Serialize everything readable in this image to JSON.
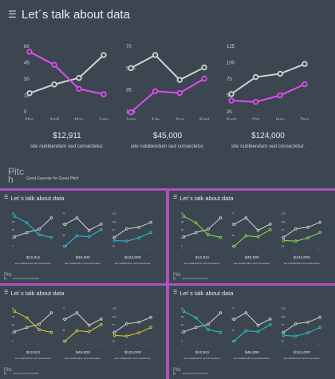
{
  "slide": {
    "title": "Let´s talk about data",
    "menu_icon": "hamburger-menu-icon",
    "brand_line1": "Pitc",
    "brand_line2": "h",
    "tagline": "Good Keynote for Great Pitch",
    "stats": [
      {
        "value": "$12,911",
        "caption": "site nubibendum sed consectetur."
      },
      {
        "value": "$45,000",
        "caption": "site nubibendum sed consectetur."
      },
      {
        "value": "$124,000",
        "caption": "site nubibendum sed consectetur."
      }
    ]
  },
  "chart_data": [
    {
      "type": "line",
      "categories": [
        "Mar",
        "April",
        "May",
        "June"
      ],
      "yticks": [
        0,
        15,
        30,
        45,
        60
      ],
      "ylim": [
        0,
        60
      ],
      "series": [
        {
          "values": [
            17,
            25,
            31,
            52
          ],
          "color": "#d4d4d4"
        },
        {
          "values": [
            55,
            43,
            21,
            16
          ],
          "color": "accent"
        }
      ]
    },
    {
      "type": "line",
      "categories": [
        "June",
        "July",
        "Aug",
        "Sept"
      ],
      "yticks": [
        17.5,
        35,
        52.5,
        70
      ],
      "ylim": [
        17.5,
        70
      ],
      "series": [
        {
          "values": [
            52.5,
            63,
            43,
            53
          ],
          "color": "#d4d4d4"
        },
        {
          "values": [
            17,
            34,
            32.5,
            44
          ],
          "color": "accent"
        }
      ]
    },
    {
      "type": "line",
      "categories": [
        "Sept",
        "Oct",
        "Nov",
        "Dec"
      ],
      "yticks": [
        25,
        50,
        75,
        100,
        125
      ],
      "ylim": [
        25,
        125
      ],
      "series": [
        {
          "values": [
            52,
            78,
            83,
            98
          ],
          "color": "#d4d4d4"
        },
        {
          "values": [
            42,
            40,
            50,
            67
          ],
          "color": "accent"
        }
      ]
    }
  ],
  "variants": [
    {
      "accent": "#e14df2",
      "chart1_color": "accent"
    },
    {
      "accent": "#26c2df",
      "chart1_color": "accent"
    },
    {
      "accent": "#8ee04b",
      "chart1_color": "accent"
    },
    {
      "accent": "#e6cc2e",
      "chart1_color": "accent"
    },
    {
      "accent": "#27c9c9",
      "chart1_color": "accent"
    }
  ]
}
